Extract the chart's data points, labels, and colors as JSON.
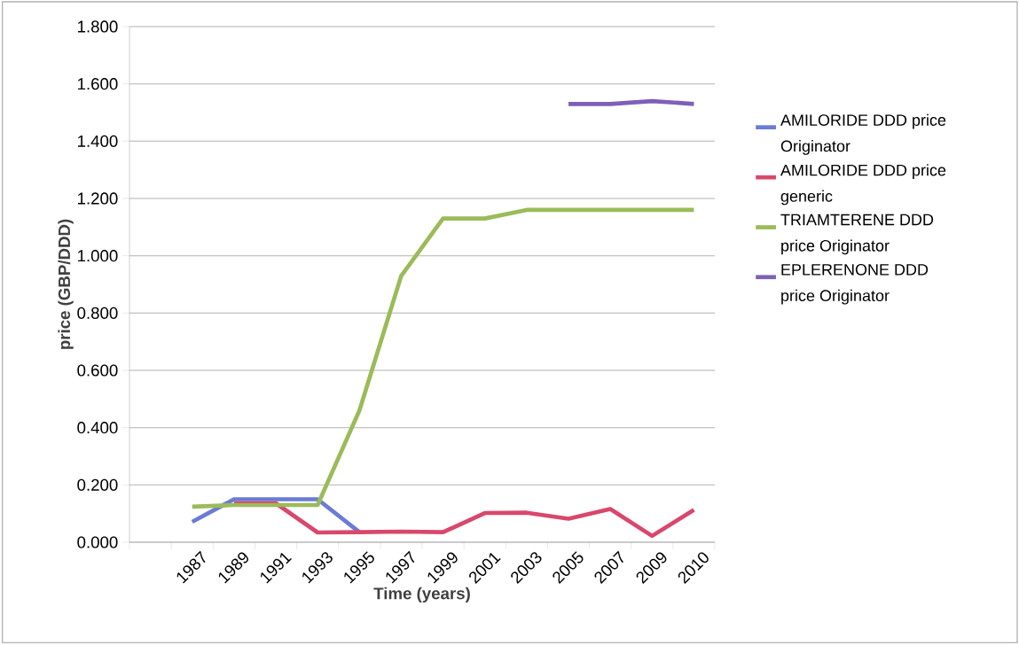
{
  "chart_data": {
    "type": "line",
    "categories": [
      null,
      "1987",
      "1989",
      "1991",
      "1993",
      "1995",
      "1997",
      "1999",
      "2001",
      "2003",
      "2005",
      "2007",
      "2009",
      "2010"
    ],
    "series": [
      {
        "name": "AMILORIDE DDD price Originator",
        "color": "#6b7bd6",
        "values": [
          null,
          0.071,
          0.15,
          0.15,
          0.15,
          0.035,
          null,
          null,
          null,
          null,
          null,
          null,
          null,
          null
        ]
      },
      {
        "name": "AMILORIDE DDD price generic",
        "color": "#d9476b",
        "values": [
          null,
          null,
          0.136,
          0.136,
          0.034,
          0.035,
          0.037,
          0.035,
          0.102,
          0.103,
          0.082,
          0.116,
          0.022,
          0.113
        ]
      },
      {
        "name": "TRIAMTERENE DDD price Originator",
        "color": "#9bbb59",
        "values": [
          null,
          0.124,
          0.13,
          0.13,
          0.13,
          0.46,
          0.93,
          1.13,
          1.13,
          1.16,
          1.16,
          1.16,
          1.16,
          1.16
        ]
      },
      {
        "name": "EPLERENONE DDD price Originator",
        "color": "#7f5fb8",
        "values": [
          null,
          null,
          null,
          null,
          null,
          null,
          null,
          null,
          null,
          null,
          1.53,
          1.53,
          1.54,
          1.53
        ]
      }
    ],
    "xlabel": "Time (years)",
    "ylabel": "price (GBP/DDD)",
    "ylim": [
      0,
      1.8
    ],
    "yticks": [
      {
        "value": 0,
        "label": "0.000"
      },
      {
        "value": 0.2,
        "label": "0.200"
      },
      {
        "value": 0.4,
        "label": "0.400"
      },
      {
        "value": 0.6,
        "label": "0.600"
      },
      {
        "value": 0.8,
        "label": "0.800"
      },
      {
        "value": 1.0,
        "label": "1.000"
      },
      {
        "value": 1.2,
        "label": "1.200"
      },
      {
        "value": 1.4,
        "label": "1.400"
      },
      {
        "value": 1.6,
        "label": "1.600"
      },
      {
        "value": 1.8,
        "label": "1.800"
      }
    ],
    "grid": "y",
    "legend": "right",
    "marker": "none",
    "line_style": "solid"
  }
}
